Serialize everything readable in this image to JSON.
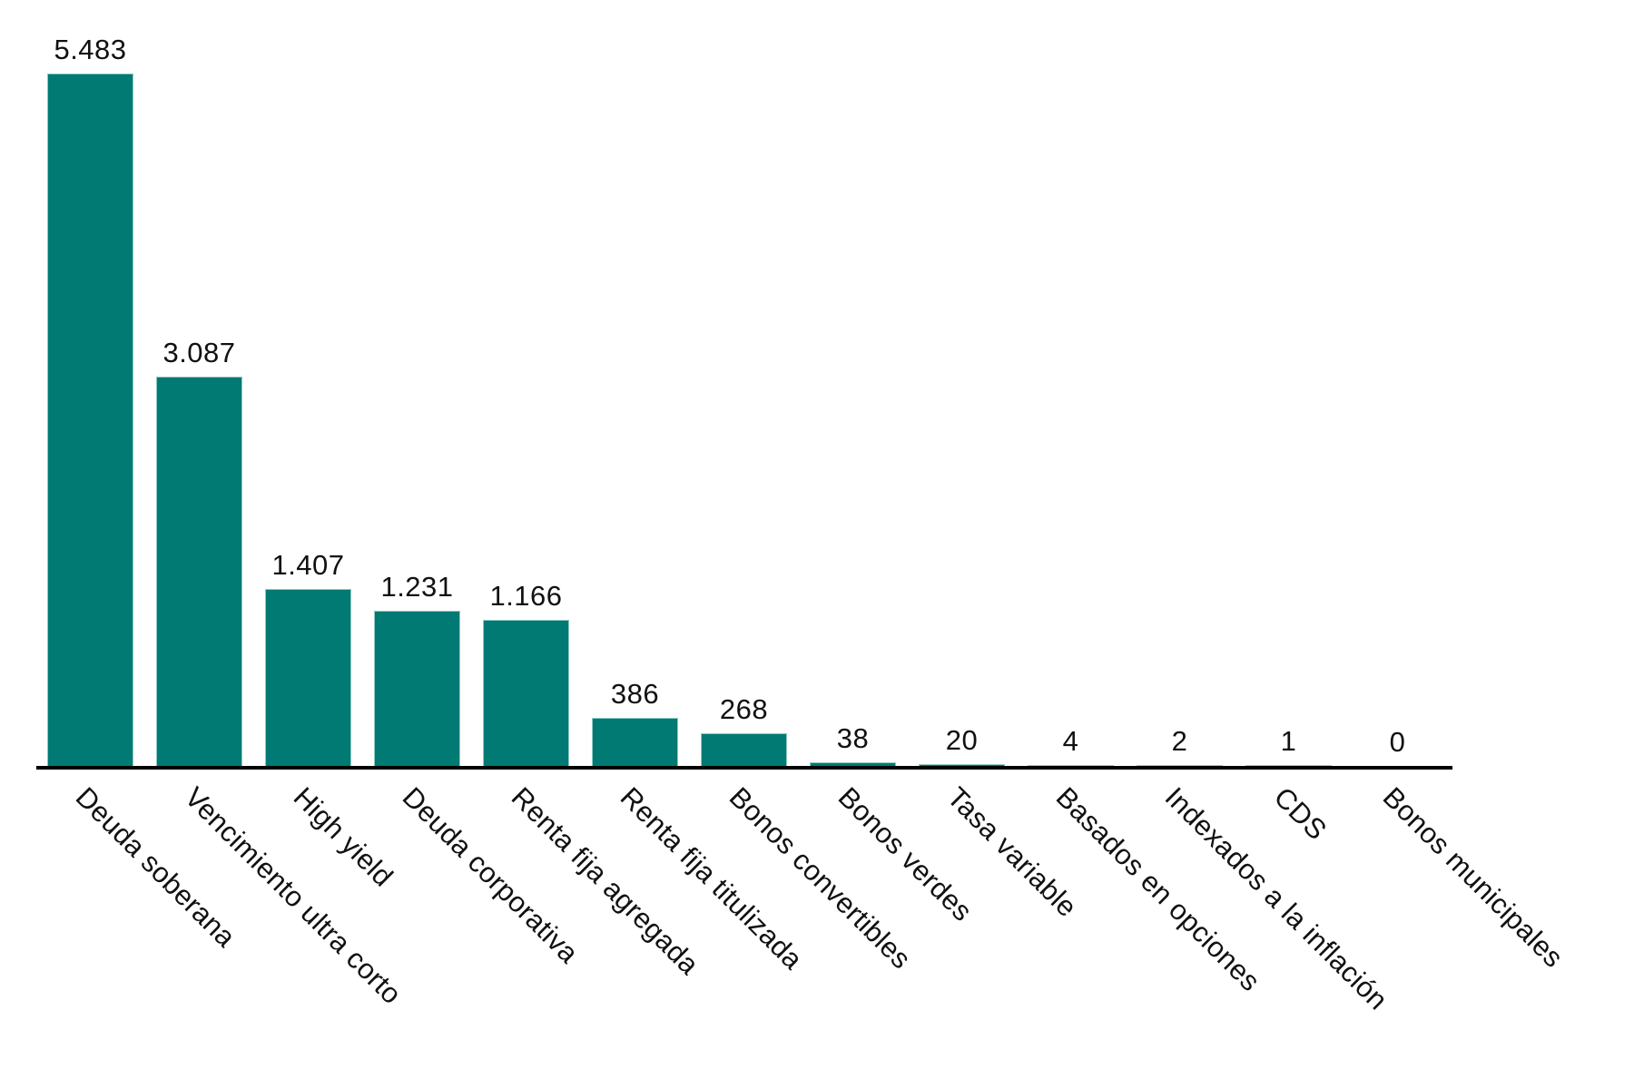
{
  "chart_data": {
    "type": "bar",
    "title": "",
    "xlabel": "",
    "ylabel": "",
    "ylim": [
      0,
      5483
    ],
    "grid": false,
    "legend": null,
    "bar_color": "#007A72",
    "categories": [
      "Deuda soberana",
      "Vencimiento ultra corto",
      "High yield",
      "Deuda corporativa",
      "Renta fija agregada",
      "Renta fija titulizada",
      "Bonos convertibles",
      "Bonos verdes",
      "Tasa variable",
      "Basados en opciones",
      "Indexados a la inflación",
      "CDS",
      "Bonos municipales"
    ],
    "values": [
      5483,
      3087,
      1407,
      1231,
      1166,
      386,
      268,
      38,
      20,
      4,
      2,
      1,
      0
    ],
    "value_labels": [
      "5.483",
      "3.087",
      "1.407",
      "1.231",
      "1.166",
      "386",
      "268",
      "38",
      "20",
      "4",
      "2",
      "1",
      "0"
    ]
  }
}
